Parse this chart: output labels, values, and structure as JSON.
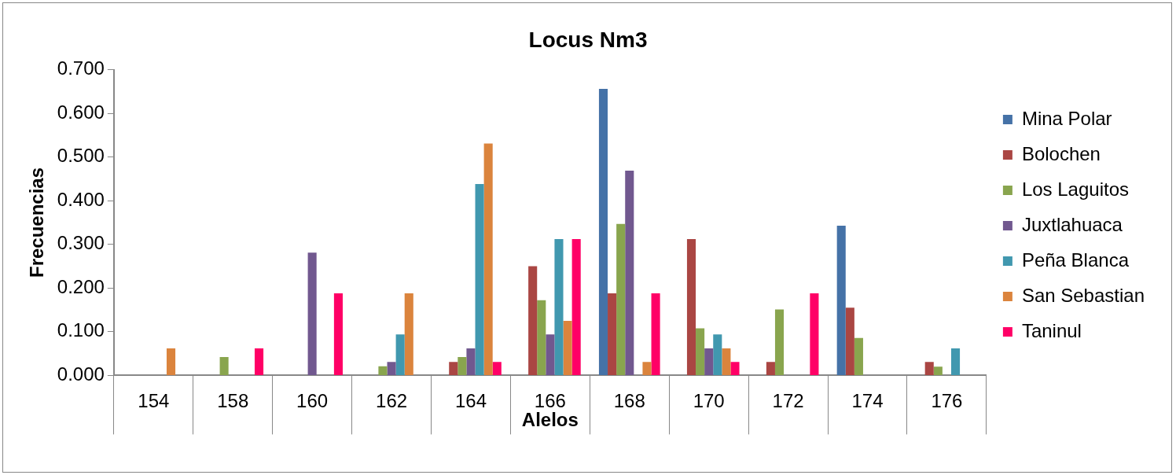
{
  "chart_data": {
    "type": "bar",
    "title": "Locus Nm3",
    "xlabel": "Alelos",
    "ylabel": "Frecuencias",
    "categories": [
      "154",
      "158",
      "160",
      "162",
      "164",
      "166",
      "168",
      "170",
      "172",
      "174",
      "176"
    ],
    "series": [
      {
        "name": "Mina Polar",
        "color": "#4572a7",
        "values": [
          null,
          null,
          null,
          null,
          null,
          null,
          0.656,
          null,
          null,
          0.343,
          null
        ]
      },
      {
        "name": "Bolochen",
        "color": "#aa4643",
        "values": [
          null,
          null,
          null,
          null,
          0.031,
          0.25,
          0.188,
          0.312,
          0.031,
          0.155,
          0.031
        ]
      },
      {
        "name": "Los Laguitos",
        "color": "#89a54e",
        "values": [
          null,
          0.042,
          null,
          0.021,
          0.042,
          0.172,
          0.347,
          0.108,
          0.151,
          0.086,
          0.02
        ]
      },
      {
        "name": "Juxtlahuaca",
        "color": "#71588f",
        "values": [
          null,
          null,
          0.281,
          0.031,
          0.062,
          0.094,
          0.469,
          0.062,
          null,
          null,
          null
        ]
      },
      {
        "name": "Peña Blanca",
        "color": "#4198af",
        "values": [
          null,
          null,
          null,
          0.094,
          0.438,
          0.312,
          null,
          0.094,
          null,
          null,
          0.062
        ]
      },
      {
        "name": "San Sebastian",
        "color": "#db843d",
        "values": [
          0.062,
          null,
          null,
          0.188,
          0.531,
          0.125,
          0.031,
          0.062,
          null,
          null,
          null
        ]
      },
      {
        "name": "Taninul",
        "color": "#ff0066",
        "values": [
          null,
          0.062,
          0.188,
          null,
          0.031,
          0.312,
          0.188,
          0.031,
          0.188,
          null,
          null
        ]
      }
    ],
    "ylim": [
      0,
      0.7
    ],
    "yticks": [
      {
        "value": 0,
        "label": "0.000"
      },
      {
        "value": 0.1,
        "label": "0.100"
      },
      {
        "value": 0.2,
        "label": "0.200"
      },
      {
        "value": 0.3,
        "label": "0.300"
      },
      {
        "value": 0.4,
        "label": "0.400"
      },
      {
        "value": 0.5,
        "label": "0.500"
      },
      {
        "value": 0.6,
        "label": "0.600"
      },
      {
        "value": 0.7,
        "label": "0.700"
      }
    ],
    "grid": false,
    "legend": "right"
  }
}
